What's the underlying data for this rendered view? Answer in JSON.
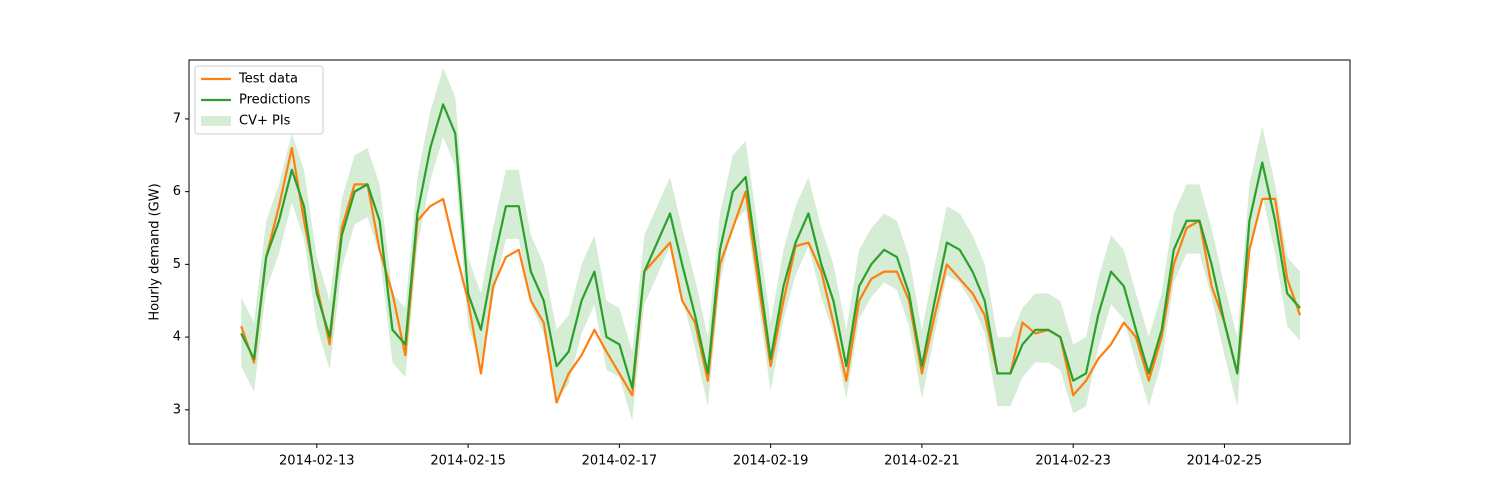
{
  "chart_data": {
    "type": "line",
    "ylabel": "Hourly demand (GW)",
    "x": [
      12,
      12.17,
      12.33,
      12.5,
      12.67,
      12.83,
      13,
      13.17,
      13.33,
      13.5,
      13.67,
      13.83,
      14,
      14.17,
      14.33,
      14.5,
      14.67,
      14.83,
      15,
      15.17,
      15.33,
      15.5,
      15.67,
      15.83,
      16,
      16.17,
      16.33,
      16.5,
      16.67,
      16.83,
      17,
      17.17,
      17.33,
      17.5,
      17.67,
      17.83,
      18,
      18.17,
      18.33,
      18.5,
      18.67,
      18.83,
      19,
      19.17,
      19.33,
      19.5,
      19.67,
      19.83,
      20,
      20.17,
      20.33,
      20.5,
      20.67,
      20.83,
      21,
      21.17,
      21.33,
      21.5,
      21.67,
      21.83,
      22,
      22.17,
      22.33,
      22.5,
      22.67,
      22.83,
      23,
      23.17,
      23.33,
      23.5,
      23.67,
      23.83,
      24,
      24.17,
      24.33,
      24.5,
      24.67,
      24.83,
      25,
      25.17,
      25.33,
      25.5,
      25.67,
      25.83,
      26
    ],
    "series": [
      {
        "name": "Test data",
        "color": "#ff7f0e",
        "values": [
          4.15,
          3.65,
          5.1,
          5.8,
          6.6,
          5.6,
          4.7,
          3.9,
          5.5,
          6.1,
          6.1,
          5.2,
          4.6,
          3.75,
          5.6,
          5.8,
          5.9,
          5.2,
          4.5,
          3.5,
          4.7,
          5.1,
          5.2,
          4.5,
          4.2,
          3.1,
          3.5,
          3.75,
          4.1,
          3.8,
          3.5,
          3.2,
          4.9,
          5.1,
          5.3,
          4.5,
          4.2,
          3.4,
          5.0,
          5.5,
          6.0,
          4.8,
          3.6,
          4.5,
          5.25,
          5.3,
          4.9,
          4.2,
          3.4,
          4.5,
          4.8,
          4.9,
          4.9,
          4.5,
          3.5,
          4.3,
          5.0,
          4.8,
          4.6,
          4.3,
          3.5,
          3.5,
          4.2,
          4.05,
          4.1,
          4.0,
          3.2,
          3.4,
          3.7,
          3.9,
          4.2,
          4.0,
          3.4,
          4.0,
          5.0,
          5.5,
          5.6,
          4.7,
          4.2,
          3.5,
          5.2,
          5.9,
          5.9,
          4.8,
          4.3
        ]
      },
      {
        "name": "Predictions",
        "color": "#2ca02c",
        "values": [
          4.05,
          3.7,
          5.1,
          5.6,
          6.3,
          5.8,
          4.6,
          4.0,
          5.4,
          6.0,
          6.1,
          5.6,
          4.1,
          3.9,
          5.7,
          6.6,
          7.2,
          6.8,
          4.6,
          4.1,
          5.0,
          5.8,
          5.8,
          4.9,
          4.5,
          3.6,
          3.8,
          4.5,
          4.9,
          4.0,
          3.9,
          3.3,
          4.9,
          5.3,
          5.7,
          5.0,
          4.3,
          3.5,
          5.2,
          6.0,
          6.2,
          5.0,
          3.7,
          4.7,
          5.3,
          5.7,
          5.0,
          4.5,
          3.6,
          4.7,
          5.0,
          5.2,
          5.1,
          4.6,
          3.6,
          4.5,
          5.3,
          5.2,
          4.9,
          4.5,
          3.5,
          3.5,
          3.9,
          4.1,
          4.1,
          4.0,
          3.4,
          3.5,
          4.3,
          4.9,
          4.7,
          4.1,
          3.5,
          4.1,
          5.2,
          5.6,
          5.6,
          5.0,
          4.2,
          3.5,
          5.6,
          6.4,
          5.6,
          4.6,
          4.4
        ]
      },
      {
        "name": "CV+ PIs",
        "color": "#2ca02c",
        "opacity": 0.2,
        "lower": [
          3.6,
          3.25,
          4.65,
          5.15,
          5.85,
          5.35,
          4.15,
          3.55,
          4.95,
          5.55,
          5.65,
          5.15,
          3.65,
          3.45,
          5.25,
          6.15,
          6.75,
          6.35,
          4.15,
          3.65,
          4.55,
          5.35,
          5.35,
          4.45,
          4.05,
          3.15,
          3.35,
          4.05,
          4.45,
          3.55,
          3.45,
          2.85,
          4.45,
          4.85,
          5.25,
          4.55,
          3.85,
          3.05,
          4.75,
          5.55,
          5.75,
          4.55,
          3.25,
          4.25,
          4.85,
          5.25,
          4.55,
          4.05,
          3.15,
          4.25,
          4.55,
          4.75,
          4.65,
          4.15,
          3.15,
          4.05,
          4.85,
          4.75,
          4.45,
          4.05,
          3.05,
          3.05,
          3.45,
          3.65,
          3.65,
          3.55,
          2.95,
          3.05,
          3.85,
          4.45,
          4.25,
          3.65,
          3.05,
          3.65,
          4.75,
          5.15,
          5.15,
          4.55,
          3.75,
          3.05,
          5.15,
          5.95,
          5.15,
          4.15,
          3.95
        ],
        "upper": [
          4.55,
          4.2,
          5.6,
          6.1,
          6.8,
          6.3,
          5.1,
          4.5,
          5.9,
          6.5,
          6.6,
          6.1,
          4.6,
          4.4,
          6.2,
          7.1,
          7.7,
          7.3,
          5.1,
          4.6,
          5.5,
          6.3,
          6.3,
          5.4,
          5.0,
          4.1,
          4.3,
          5.0,
          5.4,
          4.5,
          4.4,
          3.8,
          5.4,
          5.8,
          6.2,
          5.5,
          4.8,
          4.0,
          5.7,
          6.5,
          6.7,
          5.5,
          4.2,
          5.2,
          5.8,
          6.2,
          5.5,
          5.0,
          4.1,
          5.2,
          5.5,
          5.7,
          5.6,
          5.1,
          4.1,
          5.0,
          5.8,
          5.7,
          5.4,
          5.0,
          4.0,
          4.0,
          4.4,
          4.6,
          4.6,
          4.5,
          3.9,
          4.0,
          4.8,
          5.4,
          5.2,
          4.6,
          4.0,
          4.6,
          5.7,
          6.1,
          6.1,
          5.5,
          4.7,
          4.0,
          6.1,
          6.9,
          6.1,
          5.1,
          4.9
        ]
      }
    ],
    "xlim": [
      11.31,
      26.66
    ],
    "xticks": [
      {
        "value": 13,
        "label": "2014-02-13"
      },
      {
        "value": 15,
        "label": "2014-02-15"
      },
      {
        "value": 17,
        "label": "2014-02-17"
      },
      {
        "value": 19,
        "label": "2014-02-19"
      },
      {
        "value": 21,
        "label": "2014-02-21"
      },
      {
        "value": 23,
        "label": "2014-02-23"
      },
      {
        "value": 25,
        "label": "2014-02-25"
      }
    ],
    "ylim": [
      2.53,
      7.81
    ],
    "yticks": [
      3,
      4,
      5,
      6,
      7
    ],
    "legend": "upper left",
    "grid": false
  }
}
